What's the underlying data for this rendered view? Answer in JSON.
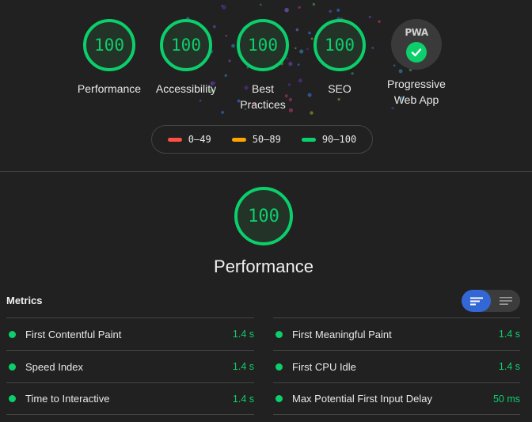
{
  "categories": [
    {
      "score": "100",
      "label": "Performance"
    },
    {
      "score": "100",
      "label": "Accessibility"
    },
    {
      "score": "100",
      "label": "Best Practices"
    },
    {
      "score": "100",
      "label": "SEO"
    }
  ],
  "pwa": {
    "badge_text": "PWA",
    "label": "Progressive Web App"
  },
  "legend": [
    {
      "range": "0–49",
      "color": "#ff4e42"
    },
    {
      "range": "50–89",
      "color": "#ffa400"
    },
    {
      "range": "90–100",
      "color": "#0cce6b"
    }
  ],
  "section": {
    "score": "100",
    "title": "Performance"
  },
  "metrics_header": "Metrics",
  "metrics_left": [
    {
      "name": "First Contentful Paint",
      "value": "1.4 s"
    },
    {
      "name": "Speed Index",
      "value": "1.4 s"
    },
    {
      "name": "Time to Interactive",
      "value": "1.4 s"
    }
  ],
  "metrics_right": [
    {
      "name": "First Meaningful Paint",
      "value": "1.4 s"
    },
    {
      "name": "First CPU Idle",
      "value": "1.4 s"
    },
    {
      "name": "Max Potential First Input Delay",
      "value": "50 ms"
    }
  ],
  "colors": {
    "pass": "#0cce6b",
    "background": "#212121",
    "toggle_active": "#3367d6"
  }
}
